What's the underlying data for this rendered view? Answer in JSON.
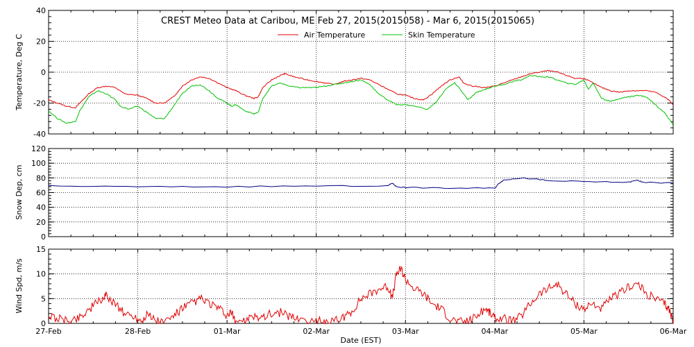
{
  "chart_data": [
    {
      "type": "line",
      "title": "CREST Meteo Data at Caribou, ME   Feb 27, 2015(2015058) - Mar  6, 2015(2015065)",
      "ylabel": "Temperature, Deg C",
      "ylim": [
        -40,
        40
      ],
      "yticks": [
        "40",
        "20",
        "0",
        "-20",
        "-40"
      ],
      "grid": true,
      "legend": "top-center",
      "x_dates": [
        "27-Feb",
        "28-Feb",
        "01-Mar",
        "02-Mar",
        "03-Mar",
        "04-Mar",
        "05-Mar",
        "06-Mar"
      ],
      "series": [
        {
          "name": "Air Temperature",
          "color": "#e00000",
          "points": [
            [
              0,
              -18
            ],
            [
              0.1,
              -20
            ],
            [
              0.2,
              -22
            ],
            [
              0.3,
              -23
            ],
            [
              0.35,
              -20
            ],
            [
              0.45,
              -14
            ],
            [
              0.55,
              -10
            ],
            [
              0.65,
              -9
            ],
            [
              0.75,
              -10
            ],
            [
              0.85,
              -14
            ],
            [
              1.0,
              -15
            ],
            [
              1.1,
              -17
            ],
            [
              1.2,
              -20
            ],
            [
              1.3,
              -20
            ],
            [
              1.4,
              -16
            ],
            [
              1.5,
              -9
            ],
            [
              1.6,
              -5
            ],
            [
              1.7,
              -3
            ],
            [
              1.8,
              -4
            ],
            [
              1.9,
              -7
            ],
            [
              2.0,
              -10
            ],
            [
              2.1,
              -12
            ],
            [
              2.2,
              -15
            ],
            [
              2.3,
              -17
            ],
            [
              2.35,
              -16
            ],
            [
              2.4,
              -10
            ],
            [
              2.5,
              -5
            ],
            [
              2.6,
              -2
            ],
            [
              2.65,
              -1
            ],
            [
              2.75,
              -3
            ],
            [
              2.9,
              -5
            ],
            [
              3.0,
              -6
            ],
            [
              3.1,
              -7
            ],
            [
              3.2,
              -8
            ],
            [
              3.3,
              -6
            ],
            [
              3.4,
              -5
            ],
            [
              3.5,
              -4
            ],
            [
              3.6,
              -5
            ],
            [
              3.7,
              -8
            ],
            [
              3.8,
              -11
            ],
            [
              3.9,
              -14
            ],
            [
              4.0,
              -15
            ],
            [
              4.1,
              -17
            ],
            [
              4.2,
              -18
            ],
            [
              4.3,
              -14
            ],
            [
              4.4,
              -9
            ],
            [
              4.5,
              -5
            ],
            [
              4.6,
              -3
            ],
            [
              4.65,
              -7
            ],
            [
              4.75,
              -9
            ],
            [
              4.9,
              -10
            ],
            [
              5.0,
              -9
            ],
            [
              5.1,
              -7
            ],
            [
              5.2,
              -5
            ],
            [
              5.3,
              -3
            ],
            [
              5.4,
              -1
            ],
            [
              5.5,
              0
            ],
            [
              5.6,
              1
            ],
            [
              5.7,
              0
            ],
            [
              5.8,
              -2
            ],
            [
              5.9,
              -4
            ],
            [
              6.0,
              -4
            ],
            [
              6.1,
              -7
            ],
            [
              6.2,
              -10
            ],
            [
              6.3,
              -12
            ],
            [
              6.4,
              -13
            ],
            [
              6.5,
              -12
            ],
            [
              6.6,
              -12
            ],
            [
              6.7,
              -12
            ],
            [
              6.8,
              -13
            ],
            [
              6.9,
              -16
            ],
            [
              6.95,
              -18
            ],
            [
              7.0,
              -21
            ]
          ]
        },
        {
          "name": "Skin Temperature",
          "color": "#00c000",
          "points": [
            [
              0,
              -25
            ],
            [
              0.1,
              -30
            ],
            [
              0.2,
              -33
            ],
            [
              0.3,
              -32
            ],
            [
              0.35,
              -25
            ],
            [
              0.45,
              -16
            ],
            [
              0.55,
              -12
            ],
            [
              0.65,
              -14
            ],
            [
              0.75,
              -18
            ],
            [
              0.8,
              -22
            ],
            [
              0.9,
              -24
            ],
            [
              1.0,
              -22
            ],
            [
              1.1,
              -26
            ],
            [
              1.2,
              -30
            ],
            [
              1.3,
              -30
            ],
            [
              1.4,
              -22
            ],
            [
              1.5,
              -14
            ],
            [
              1.6,
              -9
            ],
            [
              1.7,
              -8
            ],
            [
              1.8,
              -12
            ],
            [
              1.9,
              -17
            ],
            [
              2.0,
              -20
            ],
            [
              2.05,
              -22
            ],
            [
              2.1,
              -21
            ],
            [
              2.2,
              -25
            ],
            [
              2.3,
              -27
            ],
            [
              2.35,
              -26
            ],
            [
              2.4,
              -17
            ],
            [
              2.5,
              -9
            ],
            [
              2.6,
              -7
            ],
            [
              2.7,
              -9
            ],
            [
              2.8,
              -10
            ],
            [
              2.9,
              -10
            ],
            [
              3.0,
              -10
            ],
            [
              3.1,
              -9
            ],
            [
              3.2,
              -8
            ],
            [
              3.3,
              -7
            ],
            [
              3.4,
              -6
            ],
            [
              3.5,
              -5
            ],
            [
              3.6,
              -8
            ],
            [
              3.7,
              -14
            ],
            [
              3.8,
              -18
            ],
            [
              3.9,
              -21
            ],
            [
              4.0,
              -21
            ],
            [
              4.1,
              -22
            ],
            [
              4.25,
              -24
            ],
            [
              4.35,
              -19
            ],
            [
              4.45,
              -11
            ],
            [
              4.55,
              -7
            ],
            [
              4.6,
              -10
            ],
            [
              4.7,
              -18
            ],
            [
              4.8,
              -13
            ],
            [
              4.9,
              -11
            ],
            [
              5.0,
              -9
            ],
            [
              5.1,
              -8
            ],
            [
              5.2,
              -6
            ],
            [
              5.3,
              -5
            ],
            [
              5.4,
              -2
            ],
            [
              5.5,
              -3
            ],
            [
              5.6,
              -3
            ],
            [
              5.7,
              -5
            ],
            [
              5.8,
              -7
            ],
            [
              5.9,
              -8
            ],
            [
              6.0,
              -5
            ],
            [
              6.05,
              -11
            ],
            [
              6.1,
              -7
            ],
            [
              6.2,
              -17
            ],
            [
              6.3,
              -19
            ],
            [
              6.4,
              -17
            ],
            [
              6.5,
              -16
            ],
            [
              6.6,
              -15
            ],
            [
              6.7,
              -16
            ],
            [
              6.8,
              -21
            ],
            [
              6.9,
              -26
            ],
            [
              6.95,
              -30
            ],
            [
              7.0,
              -34
            ]
          ]
        }
      ]
    },
    {
      "type": "line",
      "ylabel": "Snow Dep, cm",
      "ylim": [
        0,
        120
      ],
      "yticks": [
        "120",
        "100",
        "80",
        "60",
        "40",
        "20",
        "0"
      ],
      "grid": true,
      "series": [
        {
          "color": "#000080",
          "points": [
            [
              0,
              69
            ],
            [
              1.0,
              68
            ],
            [
              2.0,
              68
            ],
            [
              3.0,
              69
            ],
            [
              3.8,
              69
            ],
            [
              3.85,
              73
            ],
            [
              3.9,
              68
            ],
            [
              4.0,
              67
            ],
            [
              4.5,
              66
            ],
            [
              5.0,
              66
            ],
            [
              5.05,
              73
            ],
            [
              5.1,
              77
            ],
            [
              5.3,
              80
            ],
            [
              5.5,
              78
            ],
            [
              5.6,
              76
            ],
            [
              6.0,
              75
            ],
            [
              6.5,
              74
            ],
            [
              6.6,
              77
            ],
            [
              6.65,
              74
            ],
            [
              7.0,
              73
            ]
          ]
        }
      ]
    },
    {
      "type": "line",
      "ylabel": "Wind Spd, m/s",
      "xlabel": "Date (EST)",
      "ylim": [
        0,
        15
      ],
      "yticks": [
        "15",
        "10",
        "5",
        "0"
      ],
      "grid": true,
      "series": [
        {
          "color": "#e00000",
          "points": [
            [
              0,
              1.5
            ],
            [
              0.1,
              1
            ],
            [
              0.2,
              0.5
            ],
            [
              0.3,
              0.8
            ],
            [
              0.4,
              2
            ],
            [
              0.5,
              3.5
            ],
            [
              0.6,
              5
            ],
            [
              0.65,
              5.5
            ],
            [
              0.75,
              4
            ],
            [
              0.85,
              2
            ],
            [
              0.95,
              1.5
            ],
            [
              1.05,
              0.5
            ],
            [
              1.1,
              2
            ],
            [
              1.2,
              0.5
            ],
            [
              1.3,
              0.2
            ],
            [
              1.4,
              1.5
            ],
            [
              1.5,
              3
            ],
            [
              1.6,
              4
            ],
            [
              1.7,
              5
            ],
            [
              1.8,
              4
            ],
            [
              1.9,
              3
            ],
            [
              2.0,
              1.5
            ],
            [
              2.05,
              2
            ],
            [
              2.1,
              0.5
            ],
            [
              2.2,
              0.5
            ],
            [
              2.3,
              1.2
            ],
            [
              2.4,
              1.5
            ],
            [
              2.5,
              2
            ],
            [
              2.6,
              2.2
            ],
            [
              2.7,
              1.5
            ],
            [
              2.8,
              1
            ],
            [
              3.0,
              0.5
            ],
            [
              3.1,
              0.3
            ],
            [
              3.2,
              0.5
            ],
            [
              3.3,
              1
            ],
            [
              3.4,
              2.5
            ],
            [
              3.5,
              5
            ],
            [
              3.6,
              6
            ],
            [
              3.7,
              7
            ],
            [
              3.8,
              7.5
            ],
            [
              3.85,
              5
            ],
            [
              3.9,
              10
            ],
            [
              3.95,
              11
            ],
            [
              4.0,
              9
            ],
            [
              4.1,
              7
            ],
            [
              4.2,
              6
            ],
            [
              4.3,
              4
            ],
            [
              4.4,
              3
            ],
            [
              4.5,
              1
            ],
            [
              4.6,
              0.3
            ],
            [
              4.7,
              0.5
            ],
            [
              4.8,
              1.5
            ],
            [
              4.9,
              3
            ],
            [
              4.95,
              2
            ],
            [
              5.0,
              1
            ],
            [
              5.1,
              1
            ],
            [
              5.2,
              0.3
            ],
            [
              5.3,
              1.5
            ],
            [
              5.4,
              4
            ],
            [
              5.5,
              6
            ],
            [
              5.6,
              7
            ],
            [
              5.7,
              8
            ],
            [
              5.8,
              6
            ],
            [
              5.9,
              4
            ],
            [
              6.0,
              3
            ],
            [
              6.1,
              4
            ],
            [
              6.2,
              3
            ],
            [
              6.3,
              5
            ],
            [
              6.4,
              6
            ],
            [
              6.5,
              7.5
            ],
            [
              6.6,
              8
            ],
            [
              6.7,
              6
            ],
            [
              6.8,
              5
            ],
            [
              6.9,
              4
            ],
            [
              6.95,
              3
            ],
            [
              7.0,
              0.5
            ]
          ]
        }
      ]
    }
  ]
}
